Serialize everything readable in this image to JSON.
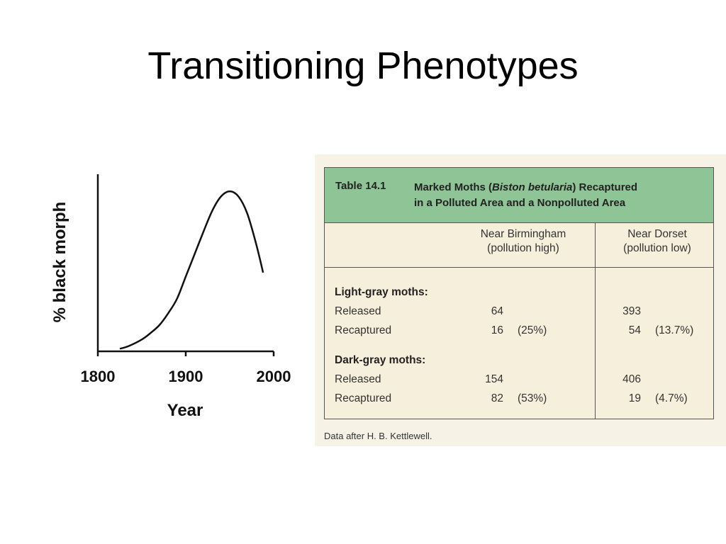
{
  "slide": {
    "title": "Transitioning Phenotypes"
  },
  "chart_data": {
    "type": "line",
    "xlabel": "Year",
    "ylabel": "% black morph",
    "xlim": [
      1800,
      2000
    ],
    "x_ticks": [
      "1800",
      "1900",
      "2000"
    ],
    "y_ticks": [],
    "grid": false,
    "series": [
      {
        "x": [
          1825,
          1835,
          1850,
          1860,
          1870,
          1880,
          1890,
          1900,
          1910,
          1920,
          1930,
          1940,
          1950,
          1960,
          1970,
          1980,
          1988
        ],
        "y": [
          2,
          4,
          9,
          14,
          20,
          29,
          40,
          57,
          74,
          91,
          107,
          118,
          122,
          118,
          105,
          82,
          60
        ]
      }
    ]
  },
  "table": {
    "number": "Table 14.1",
    "caption_pre": "Marked Moths (",
    "caption_italic": "Biston betularia",
    "caption_post": ") Recaptured",
    "caption_line2": "in a Polluted Area and a Nonpolluted Area",
    "col1_head_line1": "Near Birmingham",
    "col1_head_line2": "(pollution high)",
    "col2_head_line1": "Near Dorset",
    "col2_head_line2": "(pollution low)",
    "groups": [
      {
        "label": "Light-gray moths:",
        "rows": [
          {
            "label": "Released",
            "b_count": "64",
            "b_pct": "",
            "d_count": "393",
            "d_pct": ""
          },
          {
            "label": "Recaptured",
            "b_count": "16",
            "b_pct": "(25%)",
            "d_count": "54",
            "d_pct": "(13.7%)"
          }
        ]
      },
      {
        "label": "Dark-gray moths:",
        "rows": [
          {
            "label": "Released",
            "b_count": "154",
            "b_pct": "",
            "d_count": "406",
            "d_pct": ""
          },
          {
            "label": "Recaptured",
            "b_count": "82",
            "b_pct": "(53%)",
            "d_count": "19",
            "d_pct": "(4.7%)"
          }
        ]
      }
    ],
    "note": "Data after H. B. Kettlewell.",
    "colors": {
      "header_bg": "#8fc596",
      "body_bg": "#f5efdc"
    }
  }
}
